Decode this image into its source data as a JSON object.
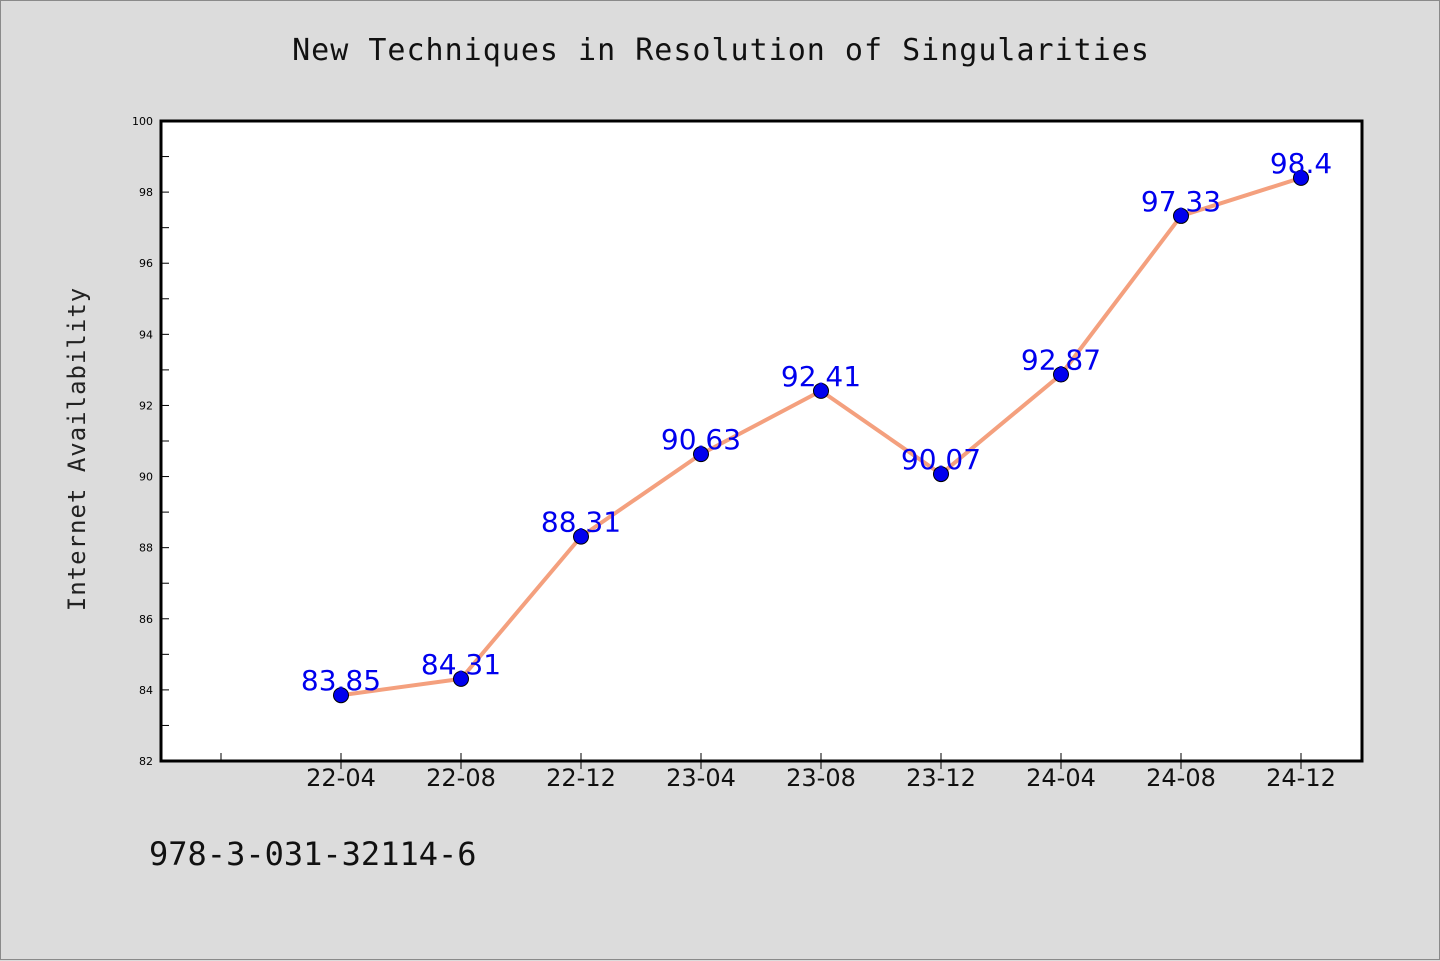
{
  "chart_data": {
    "type": "line",
    "title": "New Techniques in Resolution of Singularities",
    "xlabel": "",
    "ylabel": "Internet Availability",
    "categories": [
      "22-04",
      "22-08",
      "22-12",
      "23-04",
      "23-08",
      "23-12",
      "24-04",
      "24-08",
      "24-12"
    ],
    "series": [
      {
        "values": [
          83.85,
          84.31,
          88.31,
          90.63,
          92.41,
          90.07,
          92.87,
          97.33,
          98.4
        ],
        "data_labels": [
          "83.85",
          "84.31",
          "88.31",
          "90.63",
          "92.41",
          "90.07",
          "92.87",
          "97.33",
          "98.4"
        ],
        "line_color": "#f4a07e",
        "marker_color": "#0000ee",
        "label_color": "#0000ee"
      }
    ],
    "ylim": [
      82,
      100
    ],
    "yticks": [
      "82",
      "84",
      "86",
      "88",
      "90",
      "92",
      "94",
      "96",
      "98",
      "100"
    ],
    "grid": false,
    "legend": "none"
  },
  "footnote": "978-3-031-32114-6",
  "colors": {
    "background": "#dcdcdc",
    "plot_background": "#ffffff",
    "axes": "#000000"
  }
}
